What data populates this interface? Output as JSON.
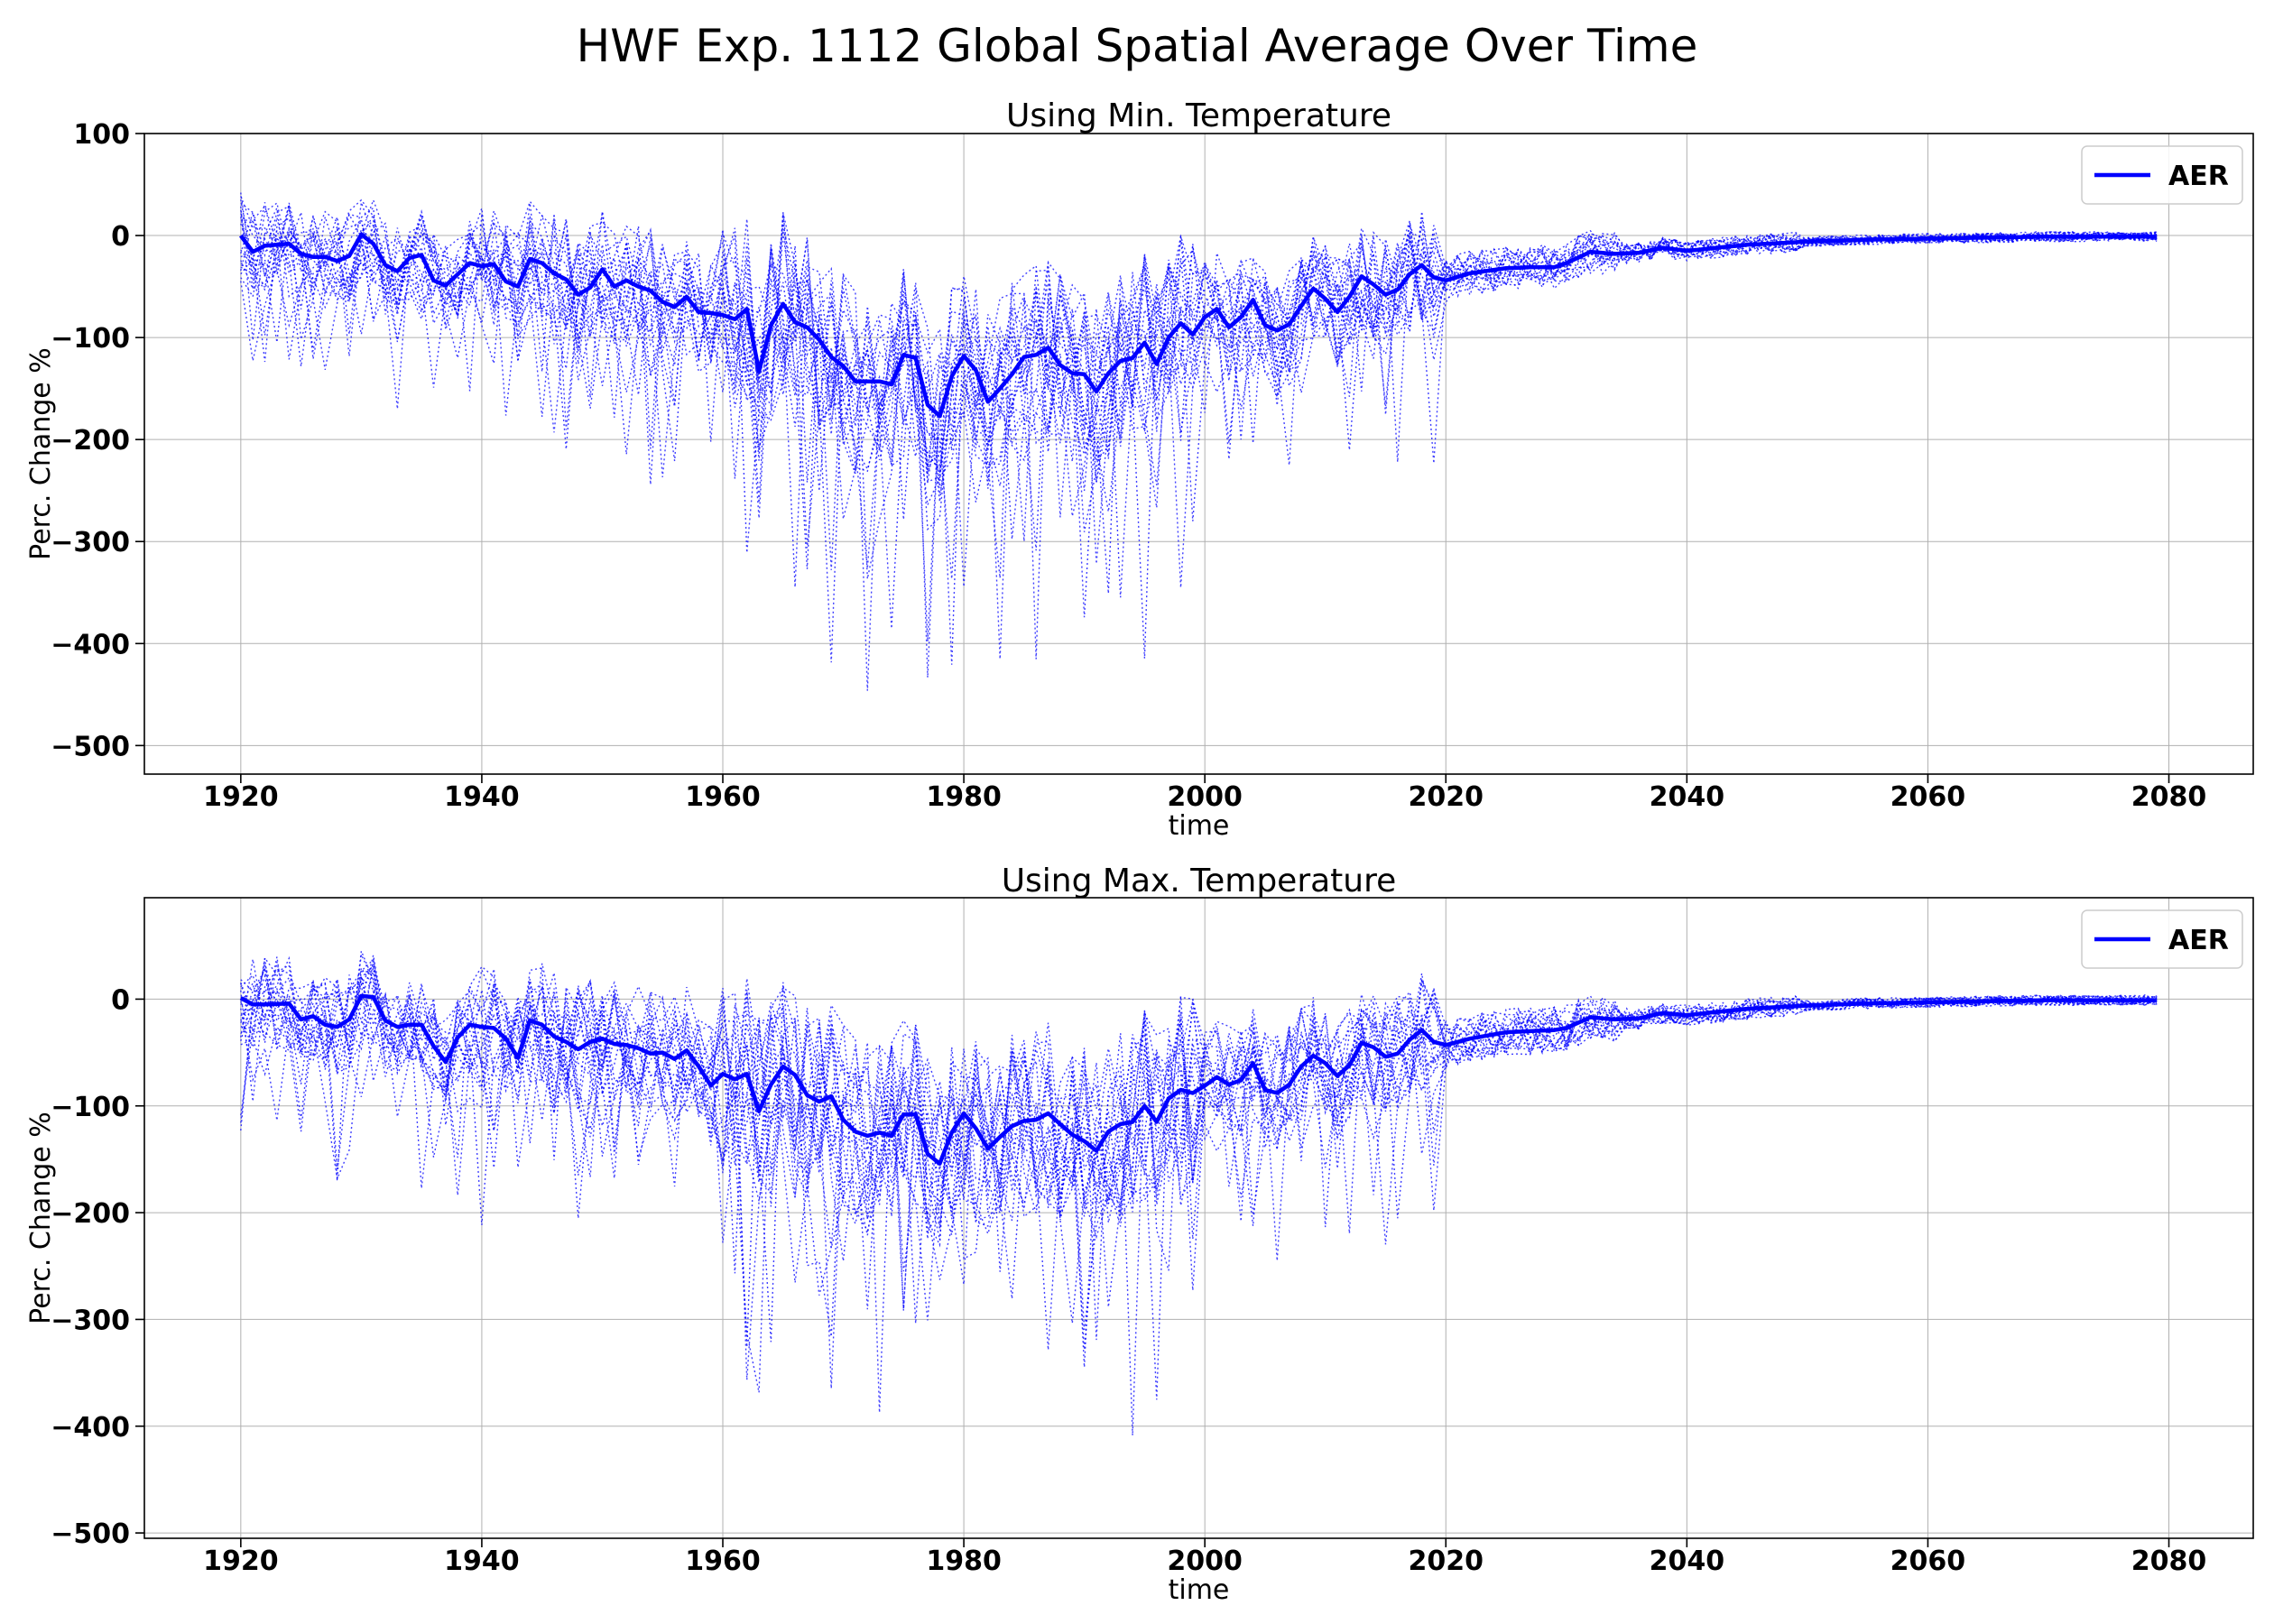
{
  "figure": {
    "title": "HWF Exp. 1112 Global Spatial Average Over Time"
  },
  "colors": {
    "series": "#0000ff",
    "grid": "#b0b0b0",
    "axes": "#000000"
  },
  "chart_data": [
    {
      "type": "line",
      "title": "Using Min. Temperature",
      "xlabel": "time",
      "ylabel": "Perc. Change %",
      "xlim": [
        1912,
        2087
      ],
      "ylim": [
        -528,
        100
      ],
      "xticks": [
        1920,
        1940,
        1960,
        1980,
        2000,
        2020,
        2040,
        2060,
        2080
      ],
      "yticks": [
        100,
        0,
        -100,
        -200,
        -300,
        -400,
        -500
      ],
      "ytick_labels": [
        "100",
        "0",
        "−100",
        "−200",
        "−300",
        "−400",
        "−500"
      ],
      "grid": true,
      "legend": {
        "position": "top-right",
        "entries": [
          "AER"
        ]
      },
      "ensemble_members": 20,
      "ensemble_style": "dotted thin lines, same color as mean",
      "series": [
        {
          "name": "AER",
          "x_start": 1920,
          "x_end": 2079,
          "anchors_x": [
            1920,
            1921,
            1922,
            1924,
            1925,
            1926,
            1927,
            1928,
            1929,
            1930,
            1931,
            1932,
            1933,
            1934,
            1935,
            1936,
            1937,
            1938,
            1939,
            1940,
            1941,
            1942,
            1943,
            1944,
            1945,
            1946,
            1947,
            1948,
            1949,
            1950,
            1951,
            1952,
            1953,
            1954,
            1955,
            1956,
            1957,
            1958,
            1959,
            1960,
            1961,
            1962,
            1963,
            1964,
            1965,
            1966,
            1967,
            1968,
            1969,
            1970,
            1971,
            1972,
            1973,
            1974,
            1975,
            1976,
            1977,
            1978,
            1979,
            1980,
            1981,
            1982,
            1983,
            1984,
            1985,
            1986,
            1987,
            1988,
            1989,
            1990,
            1991,
            1992,
            1993,
            1994,
            1995,
            1996,
            1997,
            1998,
            1999,
            2000,
            2001,
            2002,
            2003,
            2004,
            2005,
            2006,
            2007,
            2008,
            2009,
            2010,
            2011,
            2012,
            2013,
            2014,
            2015,
            2016,
            2017,
            2018,
            2019,
            2020,
            2022,
            2025,
            2027,
            2029,
            2030,
            2032,
            2034,
            2036,
            2038,
            2040,
            2045,
            2050,
            2055,
            2060,
            2065,
            2070,
            2075,
            2079
          ],
          "anchors_y": [
            0,
            -16,
            -10,
            -8,
            -18,
            -21,
            -21,
            -25,
            -20,
            1,
            -8,
            -29,
            -35,
            -22,
            -19,
            -44,
            -49,
            -38,
            -27,
            -30,
            -28,
            -45,
            -50,
            -23,
            -27,
            -37,
            -43,
            -58,
            -51,
            -33,
            -50,
            -44,
            -50,
            -54,
            -65,
            -70,
            -60,
            -75,
            -76,
            -78,
            -82,
            -72,
            -133,
            -88,
            -67,
            -85,
            -90,
            -102,
            -119,
            -128,
            -143,
            -143,
            -143,
            -146,
            -117,
            -120,
            -166,
            -177,
            -138,
            -118,
            -132,
            -163,
            -150,
            -136,
            -119,
            -117,
            -110,
            -127,
            -135,
            -136,
            -153,
            -135,
            -123,
            -120,
            -105,
            -126,
            -100,
            -86,
            -97,
            -80,
            -72,
            -90,
            -80,
            -63,
            -88,
            -93,
            -87,
            -69,
            -52,
            -62,
            -75,
            -60,
            -40,
            -48,
            -58,
            -53,
            -38,
            -29,
            -41,
            -44,
            -37,
            -32,
            -31,
            -31,
            -27,
            -16,
            -18,
            -17,
            -12,
            -15,
            -9,
            -6,
            -4,
            -3,
            -2,
            -1,
            -1,
            -1
          ]
        }
      ]
    },
    {
      "type": "line",
      "title": "Using Max. Temperature",
      "xlabel": "time",
      "ylabel": "Perc. Change %",
      "xlim": [
        1912,
        2087
      ],
      "ylim": [
        -505,
        95
      ],
      "xticks": [
        1920,
        1940,
        1960,
        1980,
        2000,
        2020,
        2040,
        2060,
        2080
      ],
      "yticks": [
        0,
        -100,
        -200,
        -300,
        -400,
        -500
      ],
      "ytick_labels": [
        "0",
        "−100",
        "−200",
        "−300",
        "−400",
        "−500"
      ],
      "grid": true,
      "legend": {
        "position": "top-right",
        "entries": [
          "AER"
        ]
      },
      "ensemble_members": 20,
      "ensemble_style": "dotted thin lines, same color as mean",
      "series": [
        {
          "name": "AER",
          "x_start": 1920,
          "x_end": 2079,
          "anchors_x": [
            1920,
            1921,
            1922,
            1924,
            1925,
            1926,
            1927,
            1928,
            1929,
            1930,
            1931,
            1932,
            1933,
            1934,
            1935,
            1936,
            1937,
            1938,
            1939,
            1940,
            1941,
            1942,
            1943,
            1944,
            1945,
            1946,
            1947,
            1948,
            1949,
            1950,
            1951,
            1952,
            1953,
            1954,
            1955,
            1956,
            1957,
            1958,
            1959,
            1960,
            1961,
            1962,
            1963,
            1964,
            1965,
            1966,
            1967,
            1968,
            1969,
            1970,
            1971,
            1972,
            1973,
            1974,
            1975,
            1976,
            1977,
            1978,
            1979,
            1980,
            1981,
            1982,
            1983,
            1984,
            1985,
            1986,
            1987,
            1988,
            1989,
            1990,
            1991,
            1992,
            1993,
            1994,
            1995,
            1996,
            1997,
            1998,
            1999,
            2000,
            2001,
            2002,
            2003,
            2004,
            2005,
            2006,
            2007,
            2008,
            2009,
            2010,
            2011,
            2012,
            2013,
            2014,
            2015,
            2016,
            2017,
            2018,
            2019,
            2020,
            2022,
            2025,
            2027,
            2029,
            2030,
            2032,
            2034,
            2036,
            2038,
            2040,
            2045,
            2050,
            2055,
            2060,
            2065,
            2070,
            2075,
            2079
          ],
          "anchors_y": [
            1,
            -5,
            -5,
            -4,
            -19,
            -16,
            -24,
            -26,
            -19,
            3,
            2,
            -20,
            -26,
            -24,
            -24,
            -44,
            -59,
            -36,
            -24,
            -26,
            -27,
            -37,
            -55,
            -20,
            -24,
            -35,
            -40,
            -47,
            -40,
            -37,
            -42,
            -43,
            -46,
            -51,
            -50,
            -56,
            -48,
            -63,
            -81,
            -70,
            -75,
            -70,
            -105,
            -80,
            -63,
            -71,
            -90,
            -96,
            -91,
            -113,
            -124,
            -128,
            -125,
            -128,
            -108,
            -108,
            -145,
            -154,
            -125,
            -107,
            -121,
            -140,
            -129,
            -119,
            -114,
            -113,
            -107,
            -117,
            -127,
            -133,
            -142,
            -124,
            -117,
            -115,
            -100,
            -115,
            -93,
            -85,
            -88,
            -81,
            -73,
            -80,
            -76,
            -60,
            -85,
            -88,
            -80,
            -63,
            -53,
            -60,
            -72,
            -62,
            -41,
            -45,
            -54,
            -51,
            -38,
            -29,
            -40,
            -43,
            -37,
            -31,
            -30,
            -29,
            -27,
            -17,
            -19,
            -18,
            -13,
            -15,
            -9,
            -6,
            -4,
            -3,
            -2,
            -1,
            -1,
            -1
          ]
        }
      ]
    }
  ]
}
